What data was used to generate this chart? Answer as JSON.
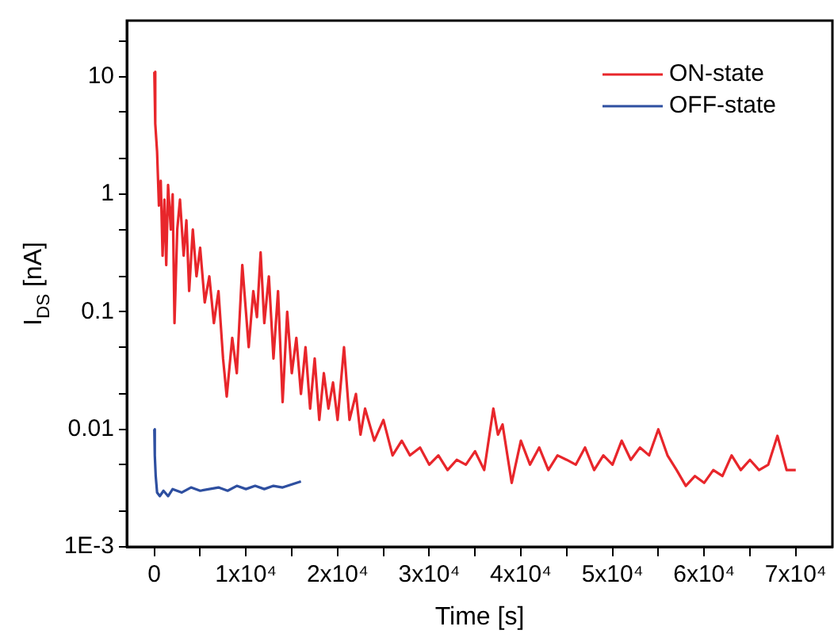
{
  "chart_data": {
    "type": "line",
    "xlabel": "Time [s]",
    "ylabel": "I$_{DS}$ [nA]",
    "log": "y",
    "grid": false,
    "legend": "top right",
    "marker": "none",
    "line_style": "solid",
    "xlim": [
      -3000,
      74000
    ],
    "ylim": [
      0.001,
      30
    ],
    "xticks": [
      0,
      {
        "value": 5000,
        "label": null
      },
      {
        "value": 10000,
        "label": "1x10⁴"
      },
      {
        "value": 15000,
        "label": null
      },
      {
        "value": 20000,
        "label": "2x10⁴"
      },
      {
        "value": 25000,
        "label": null
      },
      {
        "value": 30000,
        "label": "3x10⁴"
      },
      {
        "value": 35000,
        "label": null
      },
      {
        "value": 40000,
        "label": "4x10⁴"
      },
      {
        "value": 45000,
        "label": null
      },
      {
        "value": 50000,
        "label": "5x10⁴"
      },
      {
        "value": 55000,
        "label": null
      },
      {
        "value": 60000,
        "label": "6x10⁴"
      },
      {
        "value": 65000,
        "label": null
      },
      {
        "value": 70000,
        "label": "7x10⁴"
      }
    ],
    "yticks": [
      {
        "value": 0.001,
        "label": "1E-3"
      },
      {
        "value": 0.002,
        "label": null
      },
      {
        "value": 0.005,
        "label": null
      },
      0.01,
      {
        "value": 0.02,
        "label": null
      },
      {
        "value": 0.05,
        "label": null
      },
      0.1,
      {
        "value": 0.2,
        "label": null
      },
      {
        "value": 0.5,
        "label": null
      },
      1,
      {
        "value": 2,
        "label": null
      },
      {
        "value": 5,
        "label": null
      },
      10,
      {
        "value": 20,
        "label": null
      }
    ],
    "series": [
      {
        "name": "ON-state",
        "color": "#e8262b",
        "x": [
          0,
          100,
          300,
          500,
          700,
          900,
          1100,
          1300,
          1500,
          1800,
          2000,
          2200,
          2500,
          2800,
          3200,
          3500,
          3800,
          4200,
          4600,
          5000,
          5500,
          6000,
          6500,
          7000,
          7500,
          7900,
          8500,
          9000,
          9600,
          10300,
          10800,
          11200,
          11600,
          12000,
          12500,
          13000,
          13500,
          14000,
          14500,
          15000,
          15500,
          16000,
          16500,
          17000,
          17500,
          18000,
          18500,
          19000,
          19500,
          20000,
          20700,
          21300,
          22000,
          22500,
          23000,
          24000,
          25000,
          26000,
          27000,
          27900,
          29000,
          30000,
          31000,
          32000,
          33000,
          34000,
          35000,
          36000,
          37000,
          37500,
          38000,
          39000,
          40000,
          41000,
          42000,
          43000,
          44000,
          45000,
          46000,
          47000,
          48000,
          49000,
          50000,
          51000,
          52000,
          53000,
          54000,
          55000,
          56000,
          57000,
          58000,
          59000,
          60000,
          61000,
          62000,
          63000,
          64000,
          65000,
          66000,
          67000,
          68000,
          69000,
          70000
        ],
        "values": [
          11,
          4,
          2.3,
          0.8,
          1.3,
          0.3,
          0.9,
          0.25,
          1.2,
          0.5,
          1.0,
          0.08,
          0.5,
          0.9,
          0.3,
          0.6,
          0.15,
          0.5,
          0.2,
          0.35,
          0.12,
          0.2,
          0.08,
          0.15,
          0.04,
          0.019,
          0.06,
          0.03,
          0.25,
          0.05,
          0.15,
          0.09,
          0.32,
          0.08,
          0.2,
          0.04,
          0.15,
          0.017,
          0.1,
          0.03,
          0.06,
          0.02,
          0.05,
          0.015,
          0.04,
          0.012,
          0.03,
          0.015,
          0.025,
          0.012,
          0.05,
          0.012,
          0.02,
          0.009,
          0.015,
          0.008,
          0.012,
          0.006,
          0.008,
          0.006,
          0.007,
          0.005,
          0.006,
          0.0045,
          0.0055,
          0.005,
          0.0065,
          0.0045,
          0.015,
          0.009,
          0.011,
          0.0035,
          0.008,
          0.005,
          0.007,
          0.0045,
          0.006,
          0.0055,
          0.005,
          0.007,
          0.0045,
          0.006,
          0.005,
          0.008,
          0.0055,
          0.007,
          0.006,
          0.01,
          0.006,
          0.0045,
          0.0033,
          0.004,
          0.0035,
          0.0045,
          0.004,
          0.006,
          0.0045,
          0.0055,
          0.0045,
          0.005,
          0.0088,
          0.0045,
          0.0045
        ]
      },
      {
        "name": "OFF-state",
        "color": "#2e4fa0",
        "x": [
          0,
          50,
          150,
          300,
          600,
          1000,
          1500,
          2000,
          3000,
          4000,
          5000,
          6000,
          7000,
          8000,
          9000,
          10000,
          11000,
          12000,
          13000,
          14000,
          15000,
          16000
        ],
        "values": [
          0.01,
          0.006,
          0.004,
          0.0029,
          0.0027,
          0.003,
          0.0027,
          0.0031,
          0.0029,
          0.0032,
          0.003,
          0.0031,
          0.0032,
          0.003,
          0.0033,
          0.0031,
          0.0033,
          0.0031,
          0.0033,
          0.0032,
          0.0034,
          0.0036
        ]
      }
    ]
  }
}
